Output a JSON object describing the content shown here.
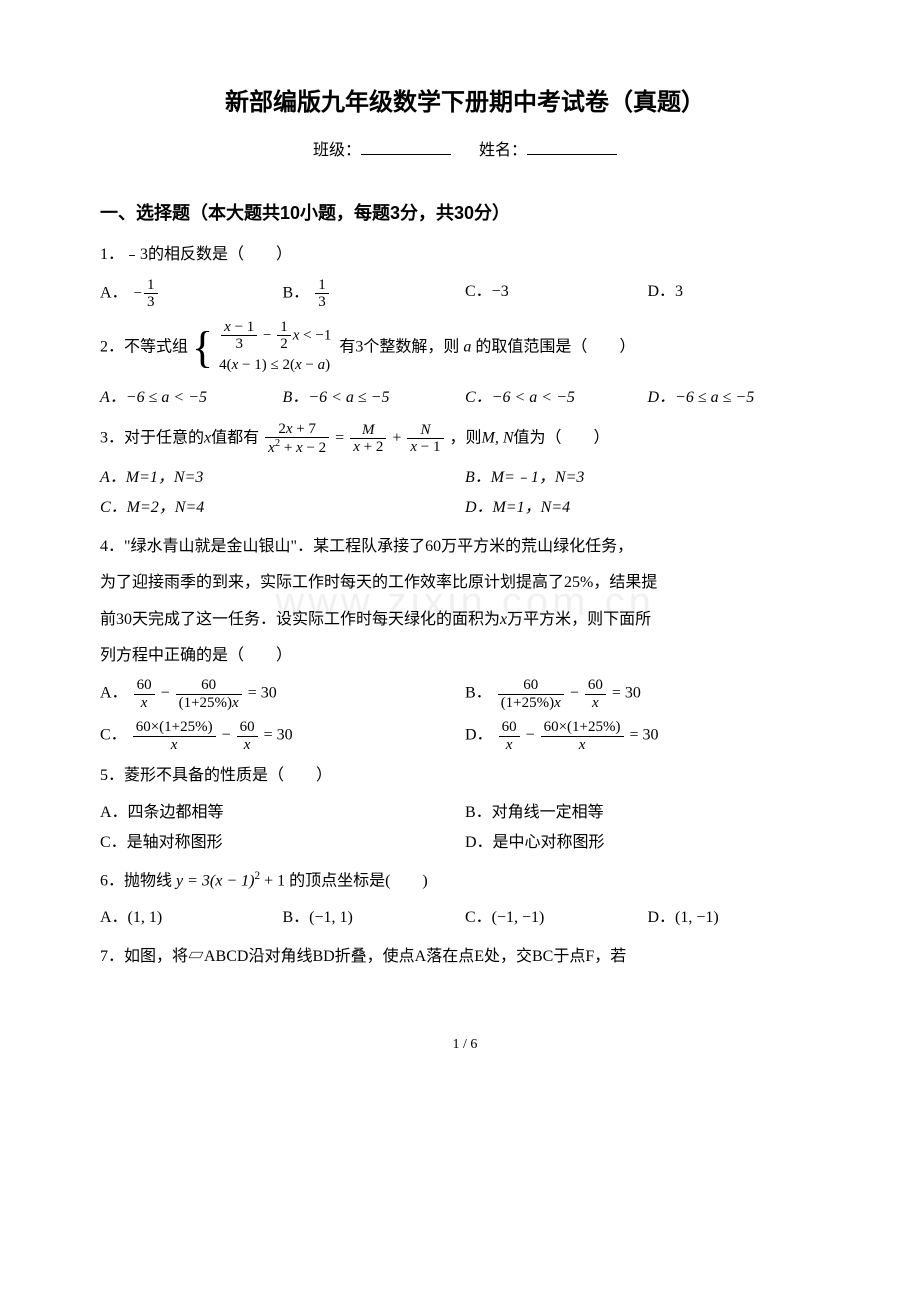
{
  "title": "新部编版九年级数学下册期中考试卷（真题）",
  "class_label": "班级：",
  "name_label": "姓名：",
  "section1": "一、选择题（本大题共10小题，每题3分，共30分）",
  "watermark": "www.zixin.com.cn",
  "page_num": "1 / 6",
  "q1": {
    "stem": "1．﹣3的相反数是（　　）",
    "A": "A．",
    "B": "B．",
    "C": "C．−3",
    "D": "D．3"
  },
  "q2": {
    "stem_pre": "2．不等式组",
    "stem_post": "有3个整数解，则",
    "stem_post2": "的取值范围是（　　）",
    "A": "A．−6 ≤ a < −5",
    "B": "B．−6 < a ≤ −5",
    "C": "C．−6 < a < −5",
    "D": "D．−6 ≤ a ≤ −5"
  },
  "q3": {
    "stem_pre": "3．对于任意的",
    "stem_mid": "值都有",
    "stem_post": "，则",
    "stem_end": "值为（　　）",
    "mn1": "M, N",
    "A": "A．M=1，N=3",
    "B": "B．M=﹣1，N=3",
    "C": "C．M=2，N=4",
    "D": "D．M=1，N=4"
  },
  "q4": {
    "line1": "4．\"绿水青山就是金山银山\"．某工程队承接了60万平方米的荒山绿化任务，",
    "line2": "为了迎接雨季的到来，实际工作时每天的工作效率比原计划提高了25%，结果提",
    "line3": "前30天完成了这一任务．设实际工作时每天绿化的面积为",
    "line3b": "万平方米，则下面所",
    "line4": "列方程中正确的是（　　）",
    "A": "A．",
    "B": "B．",
    "C": "C．",
    "D": "D．"
  },
  "q5": {
    "stem": "5．菱形不具备的性质是（　　）",
    "A": "A．四条边都相等",
    "B": "B．对角线一定相等",
    "C": "C．是轴对称图形",
    "D": "D．是中心对称图形"
  },
  "q6": {
    "stem_pre": "6．抛物线",
    "stem_eq": "y = 3(x − 1)",
    "stem_post": " + 1 的顶点坐标是(　　)",
    "A": "A．(1, 1)",
    "B": "B．(−1, 1)",
    "C": "C．(−1, −1)",
    "D": "D．(1, −1)"
  },
  "q7": {
    "stem": "7．如图，将▱ABCD沿对角线BD折叠，使点A落在点E处，交BC于点F，若"
  }
}
